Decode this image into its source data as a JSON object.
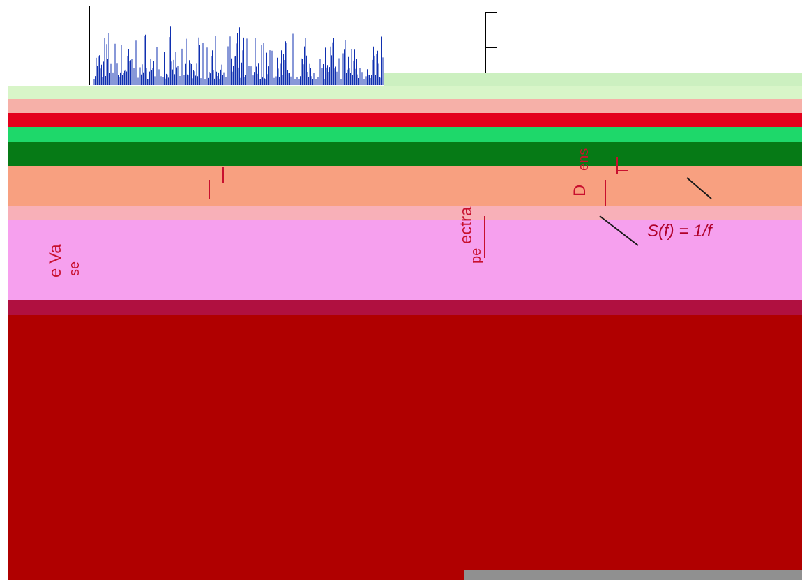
{
  "annotations": {
    "formula": "S(f) = 1/f",
    "fragment_left": "e Va",
    "fragment_left_2": "se",
    "fragment_mid": "ectra",
    "fragment_mid_2": "pe",
    "fragment_right": "D",
    "fragment_right_2": "ens"
  }
}
